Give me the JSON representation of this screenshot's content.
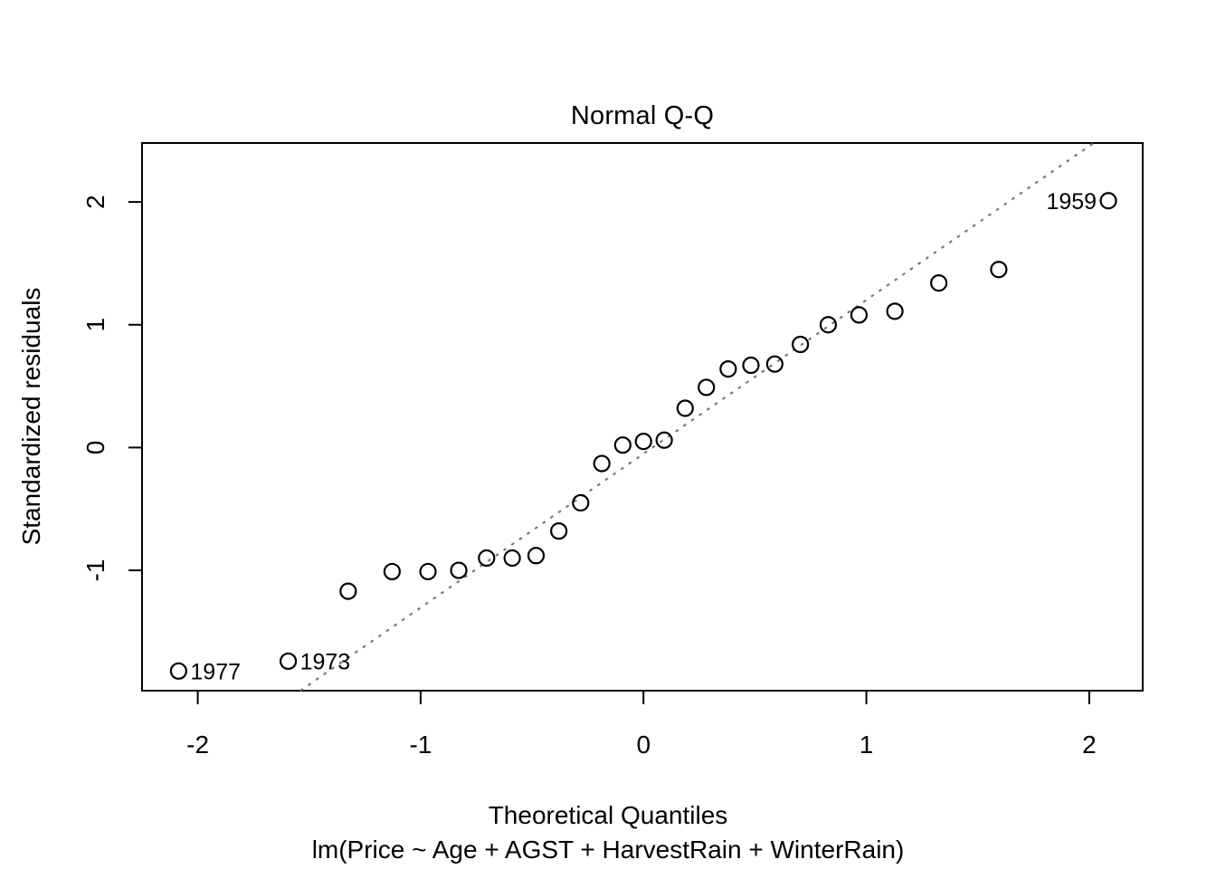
{
  "figure": {
    "title": "Normal Q-Q",
    "x_axis_label": "Theoretical Quantiles",
    "model_caption": "lm(Price ~ Age + AGST + HarvestRain + WinterRain)",
    "y_axis_label": "Standardized residuals"
  },
  "colors": {
    "foreground": "#000000",
    "background": "#ffffff",
    "reference_line": "#777777"
  },
  "chart_data": {
    "type": "scatter",
    "title": "Normal Q-Q",
    "xlabel": "Theoretical Quantiles",
    "ylabel": "Standardized residuals",
    "caption": "lm(Price ~ Age + AGST + HarvestRain + WinterRain)",
    "xlim": [
      -2.25,
      2.24
    ],
    "ylim": [
      -1.98,
      2.48
    ],
    "x_ticks": [
      -2,
      -1,
      0,
      1,
      2
    ],
    "y_ticks": [
      -1,
      0,
      1,
      2
    ],
    "grid": false,
    "legend": null,
    "marker": "open-circle",
    "reference_line": {
      "type": "qqline",
      "style": "dotted",
      "slope": 1.25,
      "intercept": -0.05,
      "endpoints": [
        [
          -1.54,
          -1.98
        ],
        [
          2.02,
          2.48
        ]
      ]
    },
    "points": [
      {
        "x": -2.086,
        "y": -1.82,
        "label": "1977",
        "side": "right"
      },
      {
        "x": -1.594,
        "y": -1.74,
        "label": "1973",
        "side": "right"
      },
      {
        "x": -1.325,
        "y": -1.17
      },
      {
        "x": -1.128,
        "y": -1.01
      },
      {
        "x": -0.967,
        "y": -1.01
      },
      {
        "x": -0.829,
        "y": -1.0
      },
      {
        "x": -0.704,
        "y": -0.9
      },
      {
        "x": -0.589,
        "y": -0.9
      },
      {
        "x": -0.482,
        "y": -0.88
      },
      {
        "x": -0.38,
        "y": -0.68
      },
      {
        "x": -0.282,
        "y": -0.45
      },
      {
        "x": -0.187,
        "y": -0.13
      },
      {
        "x": -0.093,
        "y": 0.02
      },
      {
        "x": 0.0,
        "y": 0.05
      },
      {
        "x": 0.093,
        "y": 0.06
      },
      {
        "x": 0.187,
        "y": 0.32
      },
      {
        "x": 0.282,
        "y": 0.49
      },
      {
        "x": 0.38,
        "y": 0.64
      },
      {
        "x": 0.482,
        "y": 0.67
      },
      {
        "x": 0.589,
        "y": 0.68
      },
      {
        "x": 0.704,
        "y": 0.84
      },
      {
        "x": 0.829,
        "y": 1.0
      },
      {
        "x": 0.967,
        "y": 1.08
      },
      {
        "x": 1.128,
        "y": 1.11
      },
      {
        "x": 1.325,
        "y": 1.34
      },
      {
        "x": 1.594,
        "y": 1.45
      },
      {
        "x": 2.086,
        "y": 2.01,
        "label": "1959",
        "side": "left"
      }
    ]
  }
}
